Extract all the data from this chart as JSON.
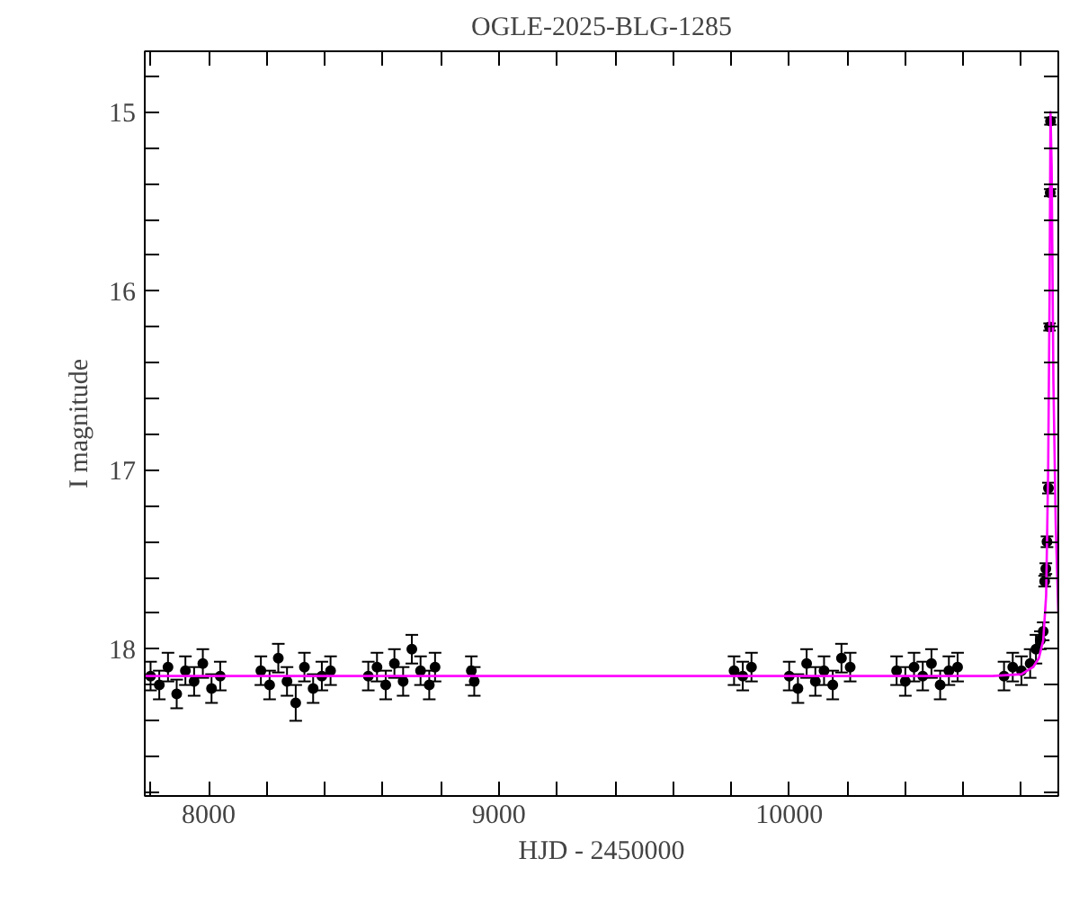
{
  "chart_data": {
    "type": "scatter",
    "title": "OGLE-2025-BLG-1285",
    "xlabel": "HJD - 2450000",
    "ylabel": "I magnitude",
    "xlim": [
      7780,
      10927
    ],
    "ylim": [
      18.82,
      14.66
    ],
    "xticks": [
      {
        "value": 7800,
        "label": null
      },
      8000,
      {
        "value": 8200,
        "label": null
      },
      {
        "value": 8400,
        "label": null
      },
      {
        "value": 8600,
        "label": null
      },
      {
        "value": 8800,
        "label": null
      },
      9000,
      {
        "value": 9200,
        "label": null
      },
      {
        "value": 9400,
        "label": null
      },
      {
        "value": 9600,
        "label": null
      },
      {
        "value": 9800,
        "label": null
      },
      10000,
      {
        "value": 10200,
        "label": null
      },
      {
        "value": 10400,
        "label": null
      },
      {
        "value": 10600,
        "label": null
      },
      {
        "value": 10800,
        "label": null
      }
    ],
    "yticks": [
      {
        "value": 14.8,
        "label": null
      },
      15,
      {
        "value": 15.2,
        "label": null
      },
      {
        "value": 15.4,
        "label": null
      },
      {
        "value": 15.6,
        "label": null
      },
      {
        "value": 15.8,
        "label": null
      },
      16,
      {
        "value": 16.2,
        "label": null
      },
      {
        "value": 16.4,
        "label": null
      },
      {
        "value": 16.6,
        "label": null
      },
      {
        "value": 16.8,
        "label": null
      },
      17,
      {
        "value": 17.2,
        "label": null
      },
      {
        "value": 17.4,
        "label": null
      },
      {
        "value": 17.6,
        "label": null
      },
      {
        "value": 17.8,
        "label": null
      },
      18,
      {
        "value": 18.2,
        "label": null
      },
      {
        "value": 18.4,
        "label": null
      },
      {
        "value": 18.6,
        "label": null
      },
      {
        "value": 18.8,
        "label": null
      }
    ],
    "grid": false,
    "series": [
      {
        "marker": "circle",
        "color": "#000000",
        "x": [
          7800,
          7830,
          7860,
          7890,
          7920,
          7950,
          7980,
          8010,
          8040,
          8180,
          8210,
          8240,
          8270,
          8300,
          8330,
          8360,
          8390,
          8420,
          8550,
          8580,
          8610,
          8640,
          8670,
          8700,
          8730,
          8760,
          8780,
          8905,
          8915,
          9810,
          9840,
          9870,
          10000,
          10030,
          10060,
          10090,
          10120,
          10150,
          10180,
          10210,
          10370,
          10400,
          10430,
          10460,
          10490,
          10520,
          10550,
          10580,
          10740,
          10770,
          10800,
          10830,
          10850,
          10865,
          10875,
          10880,
          10884,
          10888,
          10893,
          10897,
          10899
        ],
        "values": [
          18.15,
          18.2,
          18.1,
          18.25,
          18.12,
          18.18,
          18.08,
          18.22,
          18.15,
          18.12,
          18.2,
          18.05,
          18.18,
          18.3,
          18.1,
          18.22,
          18.15,
          18.12,
          18.15,
          18.1,
          18.2,
          18.08,
          18.18,
          18.0,
          18.12,
          18.2,
          18.1,
          18.12,
          18.18,
          18.12,
          18.15,
          18.1,
          18.15,
          18.22,
          18.08,
          18.18,
          18.12,
          18.2,
          18.05,
          18.1,
          18.12,
          18.18,
          18.1,
          18.15,
          18.08,
          18.2,
          18.12,
          18.1,
          18.15,
          18.1,
          18.12,
          18.08,
          18.0,
          17.95,
          17.9,
          17.62,
          17.55,
          17.4,
          17.1,
          16.2,
          15.45
        ],
        "errors": [
          0.08,
          0.08,
          0.08,
          0.08,
          0.08,
          0.08,
          0.08,
          0.08,
          0.08,
          0.08,
          0.08,
          0.08,
          0.08,
          0.1,
          0.08,
          0.08,
          0.08,
          0.08,
          0.08,
          0.08,
          0.08,
          0.08,
          0.08,
          0.08,
          0.08,
          0.08,
          0.08,
          0.08,
          0.08,
          0.08,
          0.08,
          0.08,
          0.08,
          0.08,
          0.08,
          0.08,
          0.08,
          0.08,
          0.08,
          0.08,
          0.08,
          0.08,
          0.08,
          0.08,
          0.08,
          0.08,
          0.08,
          0.08,
          0.08,
          0.08,
          0.08,
          0.08,
          0.08,
          0.05,
          0.05,
          0.03,
          0.03,
          0.03,
          0.03,
          0.02,
          0.02
        ]
      },
      {
        "marker": "circle",
        "color": "#000000",
        "x": [
          10900
        ],
        "values": [
          15.05
        ],
        "errors": [
          0.02
        ]
      },
      {
        "type": "line",
        "color": "#ff00ff",
        "x": [
          7780,
          10700,
          10800,
          10840,
          10860,
          10875,
          10885,
          10892,
          10897,
          10900,
          10904,
          10910,
          10918,
          10927
        ],
        "values": [
          18.15,
          18.15,
          18.14,
          18.1,
          18.05,
          17.95,
          17.7,
          17.0,
          16.0,
          15.0,
          15.3,
          16.5,
          17.3,
          17.8
        ]
      }
    ]
  }
}
